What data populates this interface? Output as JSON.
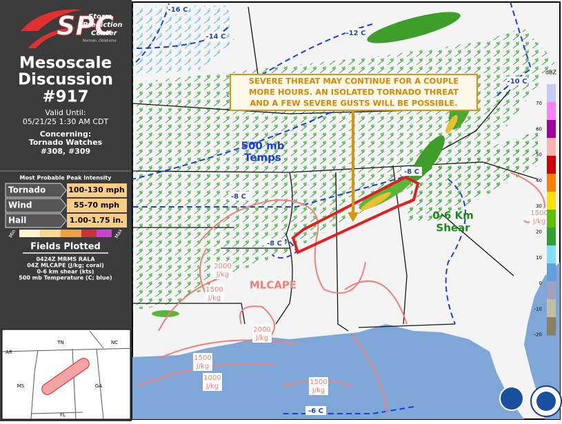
{
  "sidebar": {
    "logo": {
      "line1": "Storm",
      "line2": "Prediction",
      "line3": "Center",
      "line4": "Norman, Oklahoma"
    },
    "title_line1": "Mesoscale",
    "title_line2": "Discussion",
    "number": "#917",
    "valid_label": "Valid Until:",
    "valid_time": "05/21/25 1:30 AM CDT",
    "concerning_label": "Concerning:",
    "concerning": "Tornado Watches",
    "watches": "#308, #309",
    "intensity_title": "Most Probable Peak Intensity",
    "intensity": [
      {
        "hazard": "Tornado",
        "value": "100-130 mph"
      },
      {
        "hazard": "Wind",
        "value": "55-70 mph"
      },
      {
        "hazard": "Hail",
        "value": "1.00-1.75 in."
      }
    ],
    "scale_min": "Min",
    "scale_max": "Max",
    "fields_title": "Fields Plotted",
    "fields": [
      "0424Z MRMS RALA",
      "04Z MLCAPE (J/kg; coral)",
      "0-6 km shear (kts)",
      "500 mb Temperature (C; blue)"
    ],
    "inset_states": [
      "TN",
      "NC",
      "AR",
      "MS",
      "GA",
      "FL"
    ]
  },
  "map": {
    "annotation": [
      "SEVERE THREAT MAY CONTINUE FOR A COUPLE",
      "MORE HOURS. AN ISOLATED TORNADO THREAT",
      "AND A FEW SEVERE GUSTS WILL BE POSSIBLE."
    ],
    "temps_label": [
      "500 mb",
      "Temps"
    ],
    "shear_label": [
      "0-6 Km",
      "Shear"
    ],
    "cape_label": "MLCAPE",
    "temp_contours": [
      "-16 C",
      "-14 C",
      "-12 C",
      "-10 C",
      "-8 C",
      "-8 C",
      "-8 C",
      "-6 C"
    ],
    "cape_contours": [
      {
        "value": "2000",
        "unit": "J/kg"
      },
      {
        "value": "1500",
        "unit": "J/kg"
      },
      {
        "value": "2000",
        "unit": "J/kg"
      },
      {
        "value": "1500",
        "unit": "J/kg"
      },
      {
        "value": "1000",
        "unit": "J/kg"
      },
      {
        "value": "1500",
        "unit": "J/kg"
      },
      {
        "value": "1500",
        "unit": "J/kg"
      }
    ],
    "dbz_label": "dBZ",
    "dbz_ticks": [
      "70",
      "60",
      "50",
      "40",
      "30",
      "20",
      "10",
      "0",
      "-10",
      "-20"
    ]
  }
}
